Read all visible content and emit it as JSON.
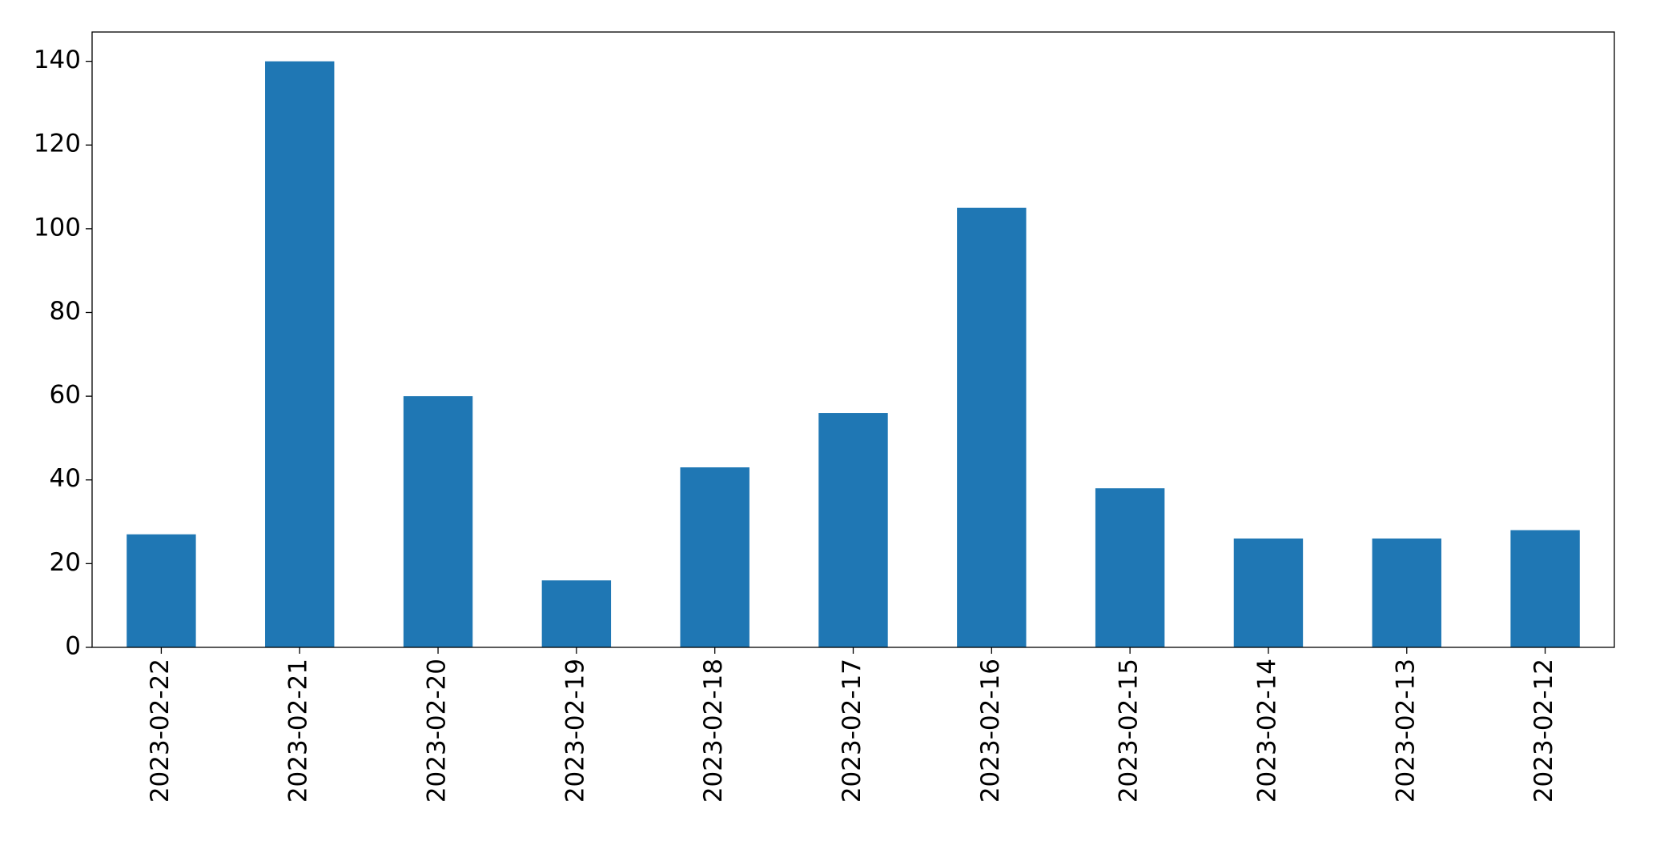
{
  "chart_data": {
    "type": "bar",
    "categories": [
      "2023-02-22",
      "2023-02-21",
      "2023-02-20",
      "2023-02-19",
      "2023-02-18",
      "2023-02-17",
      "2023-02-16",
      "2023-02-15",
      "2023-02-14",
      "2023-02-13",
      "2023-02-12"
    ],
    "values": [
      27,
      140,
      60,
      16,
      43,
      56,
      105,
      38,
      26,
      26,
      28
    ],
    "color": "#1f77b4",
    "ylim": [
      0,
      147
    ],
    "yticks": [
      0,
      20,
      40,
      60,
      80,
      100,
      120,
      140
    ],
    "grid": false
  }
}
